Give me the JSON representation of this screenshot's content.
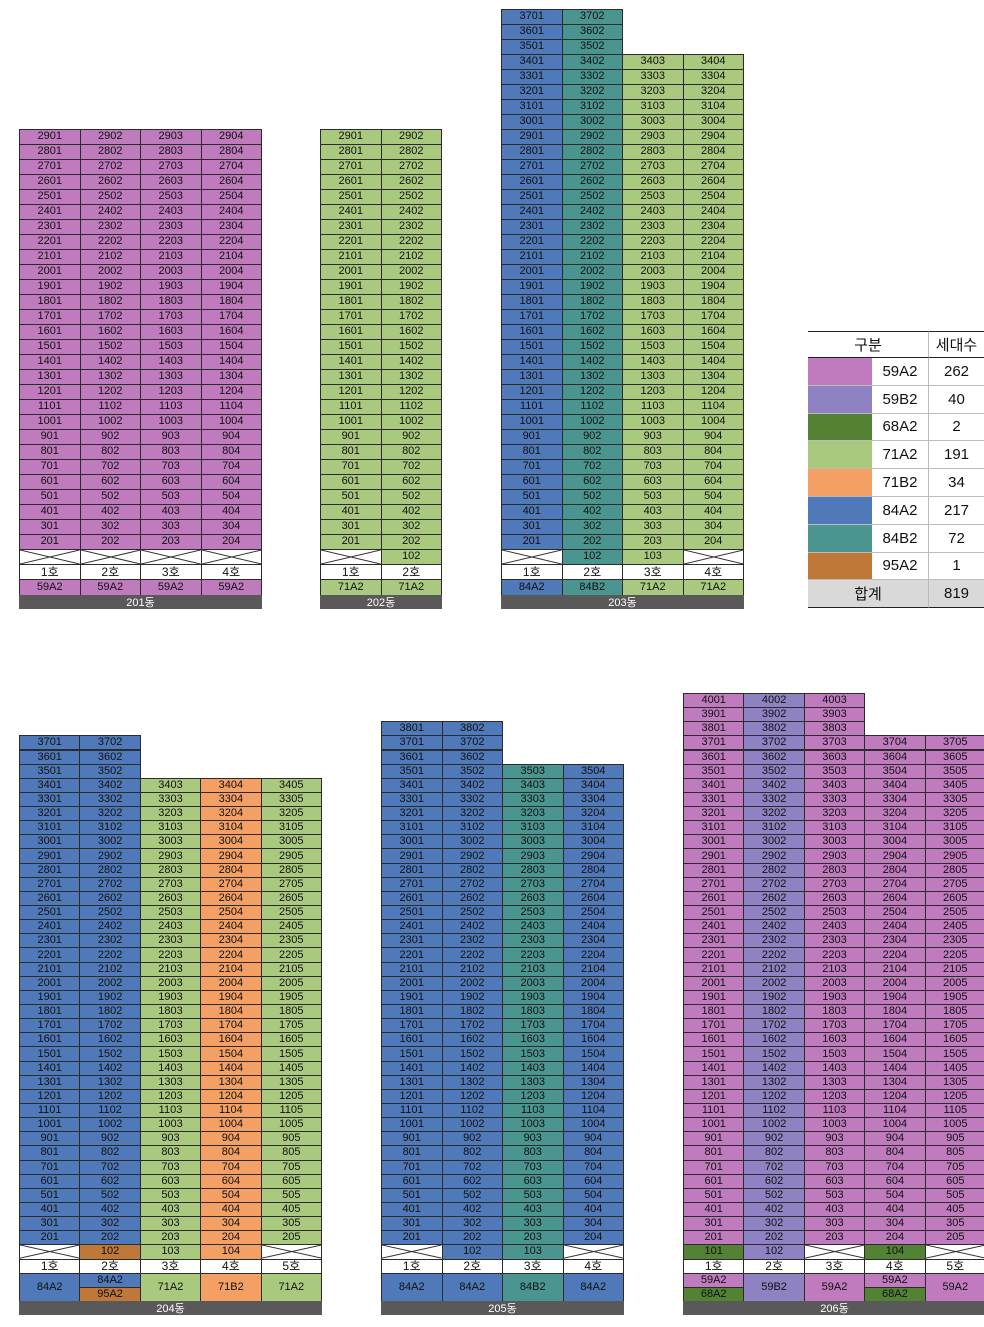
{
  "colors": {
    "59A2": "#bf7bbd",
    "59B2": "#8f82c2",
    "68A2": "#548235",
    "71A2": "#a9c97e",
    "71B2": "#f4a064",
    "84A2": "#4f79b9",
    "84B2": "#4a9590",
    "95A2": "#c07838"
  },
  "buildings": [
    {
      "name": "201동",
      "max_floor": 29,
      "columns": [
        {
          "line": "1호",
          "type": "59A2",
          "floor_types": {},
          "first_floor_unit": null
        },
        {
          "line": "2호",
          "type": "59A2",
          "floor_types": {},
          "first_floor_unit": null
        },
        {
          "line": "3호",
          "type": "59A2",
          "floor_types": {},
          "first_floor_unit": null
        },
        {
          "line": "4호",
          "type": "59A2",
          "floor_types": {},
          "first_floor_unit": null
        }
      ],
      "column_tops": [
        29,
        29,
        29,
        29
      ],
      "type_labels": [
        [
          "59A2"
        ],
        [
          "59A2"
        ],
        [
          "59A2"
        ],
        [
          "59A2"
        ]
      ]
    },
    {
      "name": "202동",
      "max_floor": 29,
      "columns": [
        {
          "line": "1호",
          "type": "71A2",
          "floor_types": {},
          "first_floor_unit": null
        },
        {
          "line": "2호",
          "type": "71A2",
          "floor_types": {},
          "first_floor_unit": "102"
        }
      ],
      "column_tops": [
        29,
        29
      ],
      "type_labels": [
        [
          "71A2"
        ],
        [
          "71A2"
        ]
      ]
    },
    {
      "name": "203동",
      "max_floor": 37,
      "columns": [
        {
          "line": "1호",
          "type": "84A2",
          "floor_types": {},
          "first_floor_unit": null
        },
        {
          "line": "2호",
          "type": "84B2",
          "floor_types": {},
          "first_floor_unit": "102"
        },
        {
          "line": "3호",
          "type": "71A2",
          "floor_types": {},
          "first_floor_unit": "103"
        },
        {
          "line": "4호",
          "type": "71A2",
          "floor_types": {},
          "first_floor_unit": null
        }
      ],
      "column_tops": [
        37,
        37,
        34,
        34
      ],
      "type_labels": [
        [
          "84A2"
        ],
        [
          "84B2"
        ],
        [
          "71A2"
        ],
        [
          "71A2"
        ]
      ]
    },
    {
      "name": "204동",
      "max_floor": 37,
      "columns": [
        {
          "line": "1호",
          "type": "84A2",
          "floor_types": {},
          "first_floor_unit": null
        },
        {
          "line": "2호",
          "type": "84A2",
          "floor_types": {
            "1": "95A2"
          },
          "first_floor_unit": "102"
        },
        {
          "line": "3호",
          "type": "71A2",
          "floor_types": {},
          "first_floor_unit": "103"
        },
        {
          "line": "4호",
          "type": "71B2",
          "floor_types": {},
          "first_floor_unit": "104"
        },
        {
          "line": "5호",
          "type": "71A2",
          "floor_types": {},
          "first_floor_unit": null
        }
      ],
      "column_tops": [
        37,
        37,
        34,
        34,
        34
      ],
      "type_labels": [
        [
          "84A2"
        ],
        [
          "84A2",
          "95A2"
        ],
        [
          "71A2"
        ],
        [
          "71B2"
        ],
        [
          "71A2"
        ]
      ]
    },
    {
      "name": "205동",
      "max_floor": 38,
      "columns": [
        {
          "line": "1호",
          "type": "84A2",
          "floor_types": {},
          "first_floor_unit": null
        },
        {
          "line": "2호",
          "type": "84A2",
          "floor_types": {},
          "first_floor_unit": "102"
        },
        {
          "line": "3호",
          "type": "84B2",
          "floor_types": {},
          "first_floor_unit": "103"
        },
        {
          "line": "4호",
          "type": "84A2",
          "floor_types": {},
          "first_floor_unit": null
        }
      ],
      "column_tops": [
        38,
        38,
        35,
        35
      ],
      "type_labels": [
        [
          "84A2"
        ],
        [
          "84A2"
        ],
        [
          "84B2"
        ],
        [
          "84A2"
        ]
      ]
    },
    {
      "name": "206동",
      "max_floor": 40,
      "columns": [
        {
          "line": "1호",
          "type": "59A2",
          "floor_types": {
            "1": "68A2"
          },
          "first_floor_unit": "101"
        },
        {
          "line": "2호",
          "type": "59B2",
          "floor_types": {},
          "first_floor_unit": "102"
        },
        {
          "line": "3호",
          "type": "59A2",
          "floor_types": {},
          "first_floor_unit": null
        },
        {
          "line": "4호",
          "type": "59A2",
          "floor_types": {
            "1": "68A2"
          },
          "first_floor_unit": "104"
        },
        {
          "line": "5호",
          "type": "59A2",
          "floor_types": {},
          "first_floor_unit": null
        }
      ],
      "column_tops": [
        40,
        40,
        40,
        37,
        37
      ],
      "type_labels": [
        [
          "59A2",
          "68A2"
        ],
        [
          "59B2"
        ],
        [
          "59A2"
        ],
        [
          "59A2",
          "68A2"
        ],
        [
          "59A2"
        ]
      ]
    }
  ],
  "legend": {
    "header": [
      "구분",
      "세대수"
    ],
    "rows": [
      {
        "type": "59A2",
        "count": "262"
      },
      {
        "type": "59B2",
        "count": "40"
      },
      {
        "type": "68A2",
        "count": "2"
      },
      {
        "type": "71A2",
        "count": "191"
      },
      {
        "type": "71B2",
        "count": "34"
      },
      {
        "type": "84A2",
        "count": "217"
      },
      {
        "type": "84B2",
        "count": "72"
      },
      {
        "type": "95A2",
        "count": "1"
      }
    ],
    "total_label": "합계",
    "total_count": "819"
  }
}
